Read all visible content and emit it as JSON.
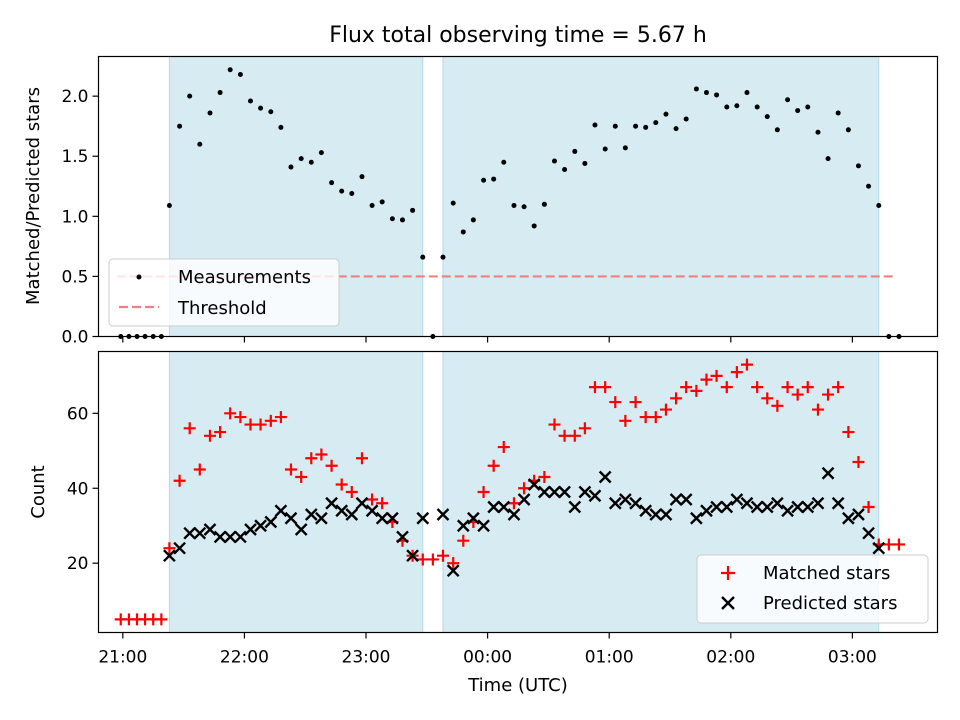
{
  "title": "Flux total observing time = 5.67 h",
  "colors": {
    "band": "#add8e6",
    "band_opacity": 0.5,
    "measurements": "#000000",
    "threshold": "#f08080",
    "matched": "#ff0000",
    "predicted": "#000000"
  },
  "chart_data": [
    {
      "type": "scatter",
      "ylabel": "Matched/Predicted stars",
      "xlim": [
        -0.2,
        6.7
      ],
      "ylim": [
        0,
        2.33
      ],
      "yticks": [
        0.0,
        0.5,
        1.0,
        1.5,
        2.0
      ],
      "ytick_labels": [
        "0.0",
        "0.5",
        "1.0",
        "1.5",
        "2.0"
      ],
      "xticks": [
        0,
        1,
        2,
        3,
        4,
        5,
        6
      ],
      "grid": false,
      "legend": {
        "placement": "lower-left",
        "entries": [
          "Measurements",
          "Threshold"
        ]
      },
      "bands": [
        [
          0.383,
          2.467
        ],
        [
          2.633,
          6.217
        ]
      ],
      "threshold": {
        "name": "Threshold",
        "value": 0.5,
        "x_range": [
          -0.05,
          6.35
        ]
      },
      "series": [
        {
          "name": "Measurements",
          "marker": "dot",
          "x": [
            -0.017,
            0.05,
            0.117,
            0.183,
            0.25,
            0.317,
            0.383,
            0.467,
            0.55,
            0.633,
            0.717,
            0.8,
            0.883,
            0.967,
            1.05,
            1.133,
            1.217,
            1.3,
            1.383,
            1.467,
            1.55,
            1.633,
            1.717,
            1.8,
            1.883,
            1.967,
            2.05,
            2.133,
            2.217,
            2.3,
            2.383,
            2.467,
            2.55,
            2.633,
            2.717,
            2.8,
            2.883,
            2.967,
            3.05,
            3.133,
            3.217,
            3.3,
            3.383,
            3.467,
            3.55,
            3.633,
            3.717,
            3.8,
            3.883,
            3.967,
            4.05,
            4.133,
            4.217,
            4.3,
            4.383,
            4.467,
            4.55,
            4.633,
            4.717,
            4.8,
            4.883,
            4.967,
            5.05,
            5.133,
            5.217,
            5.3,
            5.383,
            5.467,
            5.55,
            5.633,
            5.717,
            5.8,
            5.883,
            5.967,
            6.05,
            6.133,
            6.217,
            6.3,
            6.383
          ],
          "y": [
            0,
            0,
            0,
            0,
            0,
            0,
            1.09,
            1.75,
            2.0,
            1.6,
            1.86,
            2.03,
            2.22,
            2.18,
            1.96,
            1.9,
            1.87,
            1.74,
            1.41,
            1.48,
            1.45,
            1.53,
            1.28,
            1.21,
            1.19,
            1.33,
            1.09,
            1.12,
            0.98,
            0.97,
            1.05,
            0.66,
            0.0,
            0.66,
            1.11,
            0.87,
            0.97,
            1.3,
            1.31,
            1.45,
            1.09,
            1.08,
            0.92,
            1.1,
            1.46,
            1.39,
            1.54,
            1.44,
            1.76,
            1.56,
            1.75,
            1.57,
            1.75,
            1.74,
            1.78,
            1.85,
            1.73,
            1.81,
            2.06,
            2.03,
            2.01,
            1.91,
            1.92,
            2.03,
            1.91,
            1.83,
            1.72,
            1.97,
            1.88,
            1.91,
            1.7,
            1.48,
            1.86,
            1.72,
            1.42,
            1.25,
            1.09,
            0.0,
            0.0
          ]
        }
      ]
    },
    {
      "type": "scatter",
      "ylabel": "Count",
      "xlabel": "Time (UTC)",
      "xlim": [
        -0.2,
        6.7
      ],
      "ylim": [
        1.5,
        76.5
      ],
      "yticks": [
        20,
        40,
        60
      ],
      "ytick_labels": [
        "20",
        "40",
        "60"
      ],
      "xticks": [
        0,
        1,
        2,
        3,
        4,
        5,
        6
      ],
      "xtick_labels": [
        "21:00",
        "22:00",
        "23:00",
        "00:00",
        "01:00",
        "02:00",
        "03:00"
      ],
      "grid": false,
      "legend": {
        "placement": "lower-right",
        "entries": [
          "Matched stars",
          "Predicted stars"
        ]
      },
      "bands": [
        [
          0.383,
          2.467
        ],
        [
          2.633,
          6.217
        ]
      ],
      "series": [
        {
          "name": "Matched stars",
          "marker": "plus",
          "x": [
            -0.017,
            0.05,
            0.117,
            0.183,
            0.25,
            0.317,
            0.383,
            0.467,
            0.55,
            0.633,
            0.717,
            0.8,
            0.883,
            0.967,
            1.05,
            1.133,
            1.217,
            1.3,
            1.383,
            1.467,
            1.55,
            1.633,
            1.717,
            1.8,
            1.883,
            1.967,
            2.05,
            2.133,
            2.217,
            2.3,
            2.383,
            2.467,
            2.55,
            2.633,
            2.717,
            2.8,
            2.883,
            2.967,
            3.05,
            3.133,
            3.217,
            3.3,
            3.383,
            3.467,
            3.55,
            3.633,
            3.717,
            3.8,
            3.883,
            3.967,
            4.05,
            4.133,
            4.217,
            4.3,
            4.383,
            4.467,
            4.55,
            4.633,
            4.717,
            4.8,
            4.883,
            4.967,
            5.05,
            5.133,
            5.217,
            5.3,
            5.383,
            5.467,
            5.55,
            5.633,
            5.717,
            5.8,
            5.883,
            5.967,
            6.05,
            6.133,
            6.217,
            6.3,
            6.383
          ],
          "y": [
            5,
            5,
            5,
            5,
            5,
            5,
            24,
            42,
            56,
            45,
            54,
            55,
            60,
            59,
            57,
            57,
            58,
            59,
            45,
            43,
            48,
            49,
            46,
            41,
            39,
            48,
            37,
            36,
            31,
            26,
            22,
            21,
            21,
            22,
            20,
            26,
            31,
            39,
            46,
            51,
            36,
            40,
            42,
            43,
            57,
            54,
            54,
            56,
            67,
            67,
            63,
            58,
            63,
            59,
            59,
            61,
            64,
            67,
            66,
            69,
            70,
            67,
            71,
            73,
            67,
            64,
            62,
            67,
            65,
            67,
            61,
            65,
            67,
            55,
            47,
            35,
            25,
            25,
            25
          ]
        },
        {
          "name": "Predicted stars",
          "marker": "x",
          "x": [
            0.383,
            0.467,
            0.55,
            0.633,
            0.717,
            0.8,
            0.883,
            0.967,
            1.05,
            1.133,
            1.217,
            1.3,
            1.383,
            1.467,
            1.55,
            1.633,
            1.717,
            1.8,
            1.883,
            1.967,
            2.05,
            2.133,
            2.217,
            2.3,
            2.383,
            2.467,
            2.633,
            2.717,
            2.8,
            2.883,
            2.967,
            3.05,
            3.133,
            3.217,
            3.3,
            3.383,
            3.467,
            3.55,
            3.633,
            3.717,
            3.8,
            3.883,
            3.967,
            4.05,
            4.133,
            4.217,
            4.3,
            4.383,
            4.467,
            4.55,
            4.633,
            4.717,
            4.8,
            4.883,
            4.967,
            5.05,
            5.133,
            5.217,
            5.3,
            5.383,
            5.467,
            5.55,
            5.633,
            5.717,
            5.8,
            5.883,
            5.967,
            6.05,
            6.133,
            6.217
          ],
          "y": [
            22,
            24,
            28,
            28,
            29,
            27,
            27,
            27,
            29,
            30,
            31,
            34,
            32,
            29,
            33,
            32,
            36,
            34,
            33,
            36,
            34,
            32,
            32,
            27,
            22,
            32,
            33,
            18,
            30,
            32,
            30,
            35,
            35,
            33,
            37,
            41,
            39,
            39,
            39,
            35,
            39,
            38,
            43,
            36,
            37,
            36,
            34,
            33,
            33,
            37,
            37,
            32,
            34,
            35,
            35,
            37,
            36,
            35,
            35,
            36,
            34,
            35,
            35,
            36,
            44,
            36,
            32,
            33,
            28,
            24
          ]
        }
      ]
    }
  ]
}
